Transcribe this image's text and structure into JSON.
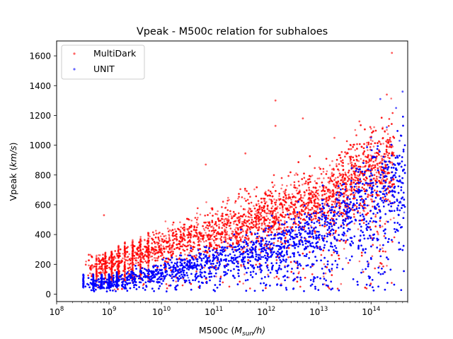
{
  "chart_data": {
    "type": "scatter",
    "title": "Vpeak - M500c relation for subhaloes",
    "xlabel_main": "M500c (",
    "xlabel_italic": "M",
    "xlabel_sub": "sun",
    "xlabel_tail": "/h)",
    "ylabel_main": "Vpeak (",
    "ylabel_italic": "km/s",
    "ylabel_tail": ")",
    "x_scale": "log",
    "xlim": [
      100000000,
      500000000000000
    ],
    "ylim": [
      -50,
      1700
    ],
    "x_ticks": [
      {
        "value": 100000000,
        "base": "10",
        "exp": "8"
      },
      {
        "value": 1000000000,
        "base": "10",
        "exp": "9"
      },
      {
        "value": 10000000000,
        "base": "10",
        "exp": "10"
      },
      {
        "value": 100000000000,
        "base": "10",
        "exp": "11"
      },
      {
        "value": 1000000000000,
        "base": "10",
        "exp": "12"
      },
      {
        "value": 10000000000000,
        "base": "10",
        "exp": "13"
      },
      {
        "value": 100000000000000,
        "base": "10",
        "exp": "14"
      }
    ],
    "y_ticks": [
      "0",
      "200",
      "400",
      "600",
      "800",
      "1000",
      "1200",
      "1400",
      "1600"
    ],
    "grid": false,
    "legend_position": "top-left",
    "series": [
      {
        "name": "MultiDark",
        "color": "#ff0000",
        "trend": [
          [
            1000000000,
            200
          ],
          [
            10000000000,
            320
          ],
          [
            100000000000,
            420
          ],
          [
            1000000000000,
            520
          ],
          [
            10000000000000,
            640
          ],
          [
            100000000000000,
            820
          ]
        ],
        "outliers": [
          [
            250000000000000,
            1620
          ],
          [
            1500000000000,
            1300
          ],
          [
            1500000000000,
            1130
          ],
          [
            5000000000000,
            1180
          ],
          [
            800000000,
            530
          ],
          [
            400000000000,
            945
          ],
          [
            70000000000,
            870
          ],
          [
            20000000000000,
            1050
          ],
          [
            60000000000000,
            1160
          ],
          [
            200000000000000,
            1340
          ]
        ]
      },
      {
        "name": "UNIT",
        "color": "#0000ff",
        "trend": [
          [
            1000000000,
            80
          ],
          [
            10000000000,
            150
          ],
          [
            100000000000,
            220
          ],
          [
            1000000000000,
            310
          ],
          [
            10000000000000,
            420
          ],
          [
            100000000000000,
            640
          ]
        ],
        "outliers": [
          [
            400000000000000,
            1360
          ],
          [
            150000000000000,
            1310
          ],
          [
            300000000000000,
            1250
          ],
          [
            200000000000000,
            1120
          ],
          [
            350000000000000,
            1030
          ],
          [
            100000000000000,
            1050
          ]
        ]
      }
    ]
  }
}
